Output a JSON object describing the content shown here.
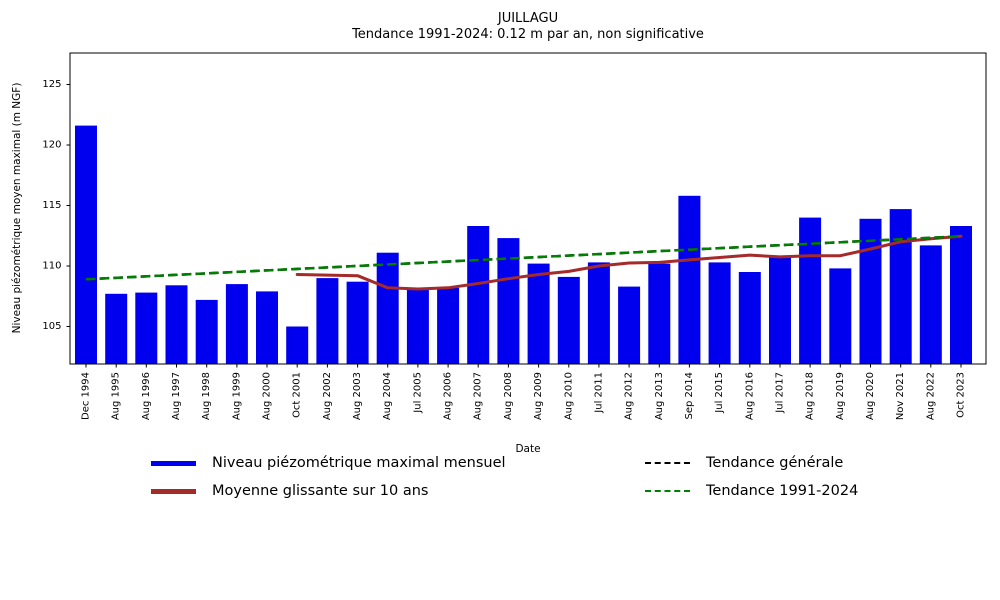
{
  "title": "JUILLAGU",
  "subtitle": "Tendance 1991-2024: 0.12 m par an, non significative",
  "chart_data": {
    "type": "bar",
    "title": "JUILLAGU",
    "subtitle": "Tendance 1991-2024: 0.12 m par an, non significative",
    "xlabel": "Date",
    "ylabel": "Niveau piézométrique moyen maximal (m NGF)",
    "categories": [
      "Dec 1994",
      "Aug 1995",
      "Aug 1996",
      "Aug 1997",
      "Aug 1998",
      "Aug 1999",
      "Aug 2000",
      "Oct 2001",
      "Aug 2002",
      "Aug 2003",
      "Aug 2004",
      "Jul 2005",
      "Aug 2006",
      "Aug 2007",
      "Aug 2008",
      "Aug 2009",
      "Aug 2010",
      "Jul 2011",
      "Aug 2012",
      "Aug 2013",
      "Sep 2014",
      "Jul 2015",
      "Aug 2016",
      "Jul 2017",
      "Aug 2018",
      "Aug 2019",
      "Aug 2020",
      "Nov 2021",
      "Aug 2022",
      "Oct 2023"
    ],
    "series": [
      {
        "name": "Niveau piézométrique maximal mensuel",
        "type": "bar",
        "color": "#0000ee",
        "dashed": false,
        "values": [
          121.6,
          107.7,
          107.8,
          108.4,
          107.2,
          108.5,
          107.9,
          105.0,
          109.0,
          108.7,
          111.1,
          108.1,
          108.2,
          113.3,
          112.3,
          110.2,
          109.1,
          110.3,
          108.3,
          110.2,
          115.8,
          110.3,
          109.5,
          110.7,
          114.0,
          109.8,
          113.9,
          114.7,
          111.7,
          113.3
        ]
      },
      {
        "name": "Moyenne glissante sur 10 ans",
        "type": "line",
        "color": "#a52a2a",
        "dashed": false,
        "values": [
          null,
          null,
          null,
          null,
          null,
          null,
          null,
          109.3,
          109.25,
          109.2,
          108.2,
          108.1,
          108.2,
          108.55,
          108.95,
          109.3,
          109.55,
          110.0,
          110.25,
          110.3,
          110.5,
          110.7,
          110.9,
          110.75,
          110.85,
          110.85,
          111.4,
          112.0,
          112.25,
          112.45
        ]
      },
      {
        "name": "Tendance générale",
        "type": "trend",
        "color": "#000000",
        "dashed": true,
        "x": [
          0,
          29
        ],
        "y": [
          108.9,
          112.45
        ]
      },
      {
        "name": "Tendance 1991-2024",
        "type": "trend",
        "color": "#008000",
        "dashed": true,
        "x": [
          0,
          29
        ],
        "y": [
          108.9,
          112.45
        ]
      }
    ],
    "yticks": [
      105,
      110,
      115,
      120,
      125
    ],
    "ylim": [
      101.9,
      127.6
    ],
    "grid": false,
    "legend_position": "bottom"
  }
}
